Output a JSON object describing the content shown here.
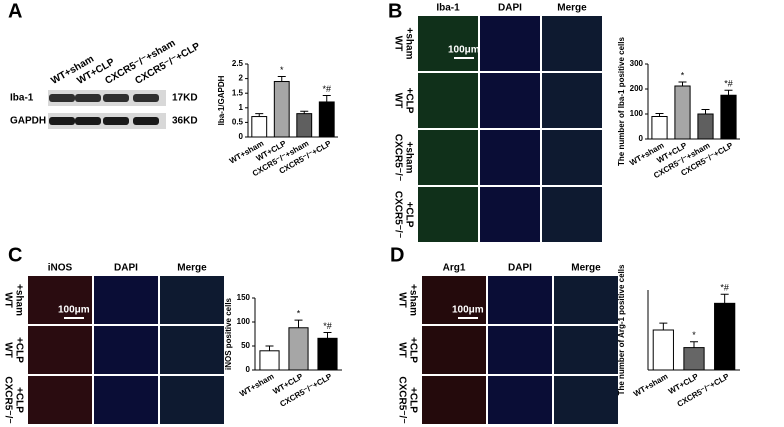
{
  "panel_labels": [
    "A",
    "B",
    "C",
    "D"
  ],
  "blot": {
    "lanes": [
      "WT+sham",
      "WT+CLP",
      "CXCR5⁻/⁻+sham",
      "CXCR5⁻/⁻+CLP"
    ],
    "rows": [
      "Iba-1",
      "GAPDH"
    ],
    "sizes": [
      "17KD",
      "36KD"
    ]
  },
  "grids": [
    {
      "columns": [
        "Iba-1",
        "DAPI",
        "Merge"
      ],
      "rows": [
        [
          "WT",
          "+sham"
        ],
        [
          "WT",
          "+CLP"
        ],
        [
          "CXCR5⁻/⁻",
          "+sham"
        ],
        [
          "CXCR5⁻/⁻",
          "+CLP"
        ]
      ],
      "scale_bar": "100μm"
    },
    {
      "columns": [
        "iNOS",
        "DAPI",
        "Merge"
      ],
      "rows": [
        [
          "WT",
          "+sham"
        ],
        [
          "WT",
          "+CLP"
        ],
        [
          "CXCR5⁻/⁻",
          "+CLP"
        ]
      ],
      "scale_bar": "100μm"
    },
    {
      "columns": [
        "Arg1",
        "DAPI",
        "Merge"
      ],
      "rows": [
        [
          "WT",
          "+sham"
        ],
        [
          "WT",
          "+CLP"
        ],
        [
          "CXCR5⁻/⁻",
          "+CLP"
        ]
      ],
      "scale_bar": "100μm"
    }
  ],
  "chart_data": [
    {
      "type": "bar",
      "ylabel": "Iba-1/GAPDH",
      "categories": [
        "WT+sham",
        "WT+CLP",
        "CXCR5⁻/⁻+sham",
        "CXCR5⁻/⁻+CLP"
      ],
      "values": [
        0.7,
        1.9,
        0.8,
        1.2
      ],
      "errors": [
        0.1,
        0.17,
        0.08,
        0.22
      ],
      "colors": [
        "#ffffff",
        "#a6a6a6",
        "#5f5f5f",
        "#000000"
      ],
      "annotations": [
        null,
        "*",
        null,
        "*#"
      ],
      "ylim": [
        0,
        2.5
      ],
      "yticks": [
        0,
        0.5,
        1,
        1.5,
        2,
        2.5
      ]
    },
    {
      "type": "bar",
      "ylabel": "The number of Iba-1 positive cells",
      "categories": [
        "WT+sham",
        "WT+CLP",
        "CXCR5⁻/⁻+sham",
        "CXCR5⁻/⁻+CLP"
      ],
      "values": [
        90,
        212,
        100,
        175
      ],
      "errors": [
        12,
        16,
        18,
        20
      ],
      "colors": [
        "#ffffff",
        "#a6a6a6",
        "#5f5f5f",
        "#000000"
      ],
      "annotations": [
        null,
        "*",
        null,
        "*#"
      ],
      "ylim": [
        0,
        300
      ],
      "yticks": [
        0,
        100,
        200,
        300
      ]
    },
    {
      "type": "bar",
      "ylabel": "iNOS positive cells",
      "categories": [
        "WT+sham",
        "WT+CLP",
        "CXCR5⁻/⁻+CLP"
      ],
      "values": [
        40,
        88,
        66
      ],
      "errors": [
        10,
        16,
        12
      ],
      "colors": [
        "#ffffff",
        "#a6a6a6",
        "#000000"
      ],
      "annotations": [
        null,
        "*",
        "*#"
      ],
      "ylim": [
        0,
        150
      ],
      "yticks": [
        0,
        50,
        100,
        150
      ]
    },
    {
      "type": "bar",
      "ylabel": "The number of Arg-1 positive cells",
      "categories": [
        "WT+sham",
        "WT+CLP",
        "CXCR5⁻/⁻+CLP"
      ],
      "values": [
        75,
        42,
        125
      ],
      "errors": [
        13,
        11,
        17
      ],
      "colors": [
        "#ffffff",
        "#666666",
        "#000000"
      ],
      "annotations": [
        null,
        "*",
        "*#"
      ],
      "ylim": [
        0,
        150
      ]
    }
  ]
}
